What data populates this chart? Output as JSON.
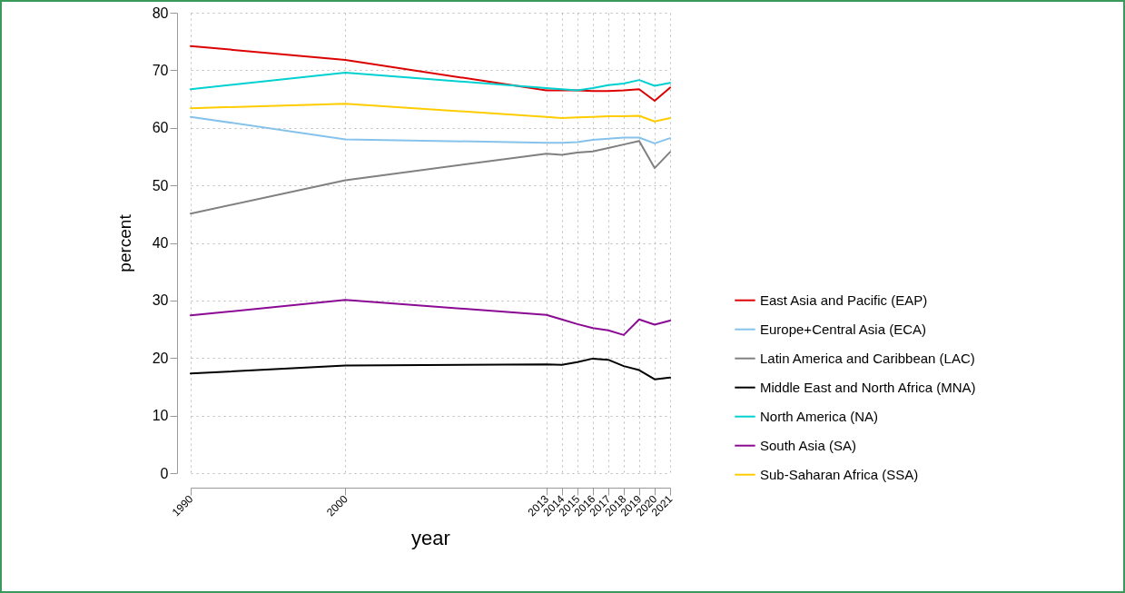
{
  "chart_data": {
    "type": "line",
    "xlabel": "year",
    "ylabel": "percent",
    "x": [
      1990,
      2000,
      2013,
      2014,
      2015,
      2016,
      2017,
      2018,
      2019,
      2020,
      2021
    ],
    "xlim": [
      1990,
      2021
    ],
    "xticks": [
      1990,
      2000,
      2013,
      2014,
      2015,
      2016,
      2017,
      2018,
      2019,
      2020,
      2021
    ],
    "ylim": [
      0,
      80
    ],
    "yticks": [
      0,
      10,
      20,
      30,
      40,
      50,
      60,
      70,
      80
    ],
    "grid": true,
    "legend": "right",
    "line_style": "solid",
    "series": [
      {
        "name": "East Asia and Pacific (EAP)",
        "color": "#dd0000",
        "values": [
          74.2,
          71.8,
          66.5,
          66.5,
          66.5,
          66.4,
          66.4,
          66.5,
          66.7,
          64.7,
          67.0
        ]
      },
      {
        "name": "Europe+Central Asia (ECA)",
        "color": "#86c2ec",
        "values": [
          61.9,
          58.0,
          57.4,
          57.4,
          57.5,
          57.9,
          58.1,
          58.3,
          58.3,
          57.3,
          58.2
        ]
      },
      {
        "name": "Latin America and Caribbean (LAC)",
        "color": "#808080",
        "values": [
          45.1,
          50.9,
          55.5,
          55.3,
          55.7,
          55.9,
          56.5,
          57.1,
          57.7,
          53.0,
          55.8
        ]
      },
      {
        "name": "Middle East and North Africa (MNA)",
        "color": "#000000",
        "values": [
          17.3,
          18.7,
          18.9,
          18.8,
          19.3,
          19.9,
          19.7,
          18.6,
          17.9,
          16.3,
          16.6
        ]
      },
      {
        "name": "North America (NA)",
        "color": "#00d0d0",
        "values": [
          66.7,
          69.6,
          66.9,
          66.7,
          66.5,
          66.9,
          67.4,
          67.7,
          68.3,
          67.3,
          67.8
        ]
      },
      {
        "name": "South Asia (SA)",
        "color": "#8b0a93",
        "values": [
          27.4,
          30.1,
          27.5,
          26.7,
          25.9,
          25.2,
          24.8,
          24.0,
          26.7,
          25.8,
          26.5
        ]
      },
      {
        "name": "Sub-Saharan Africa (SSA)",
        "color": "#ffcc00",
        "values": [
          63.4,
          64.2,
          61.9,
          61.7,
          61.8,
          61.9,
          62.0,
          62.0,
          62.1,
          61.1,
          61.7
        ]
      }
    ]
  }
}
